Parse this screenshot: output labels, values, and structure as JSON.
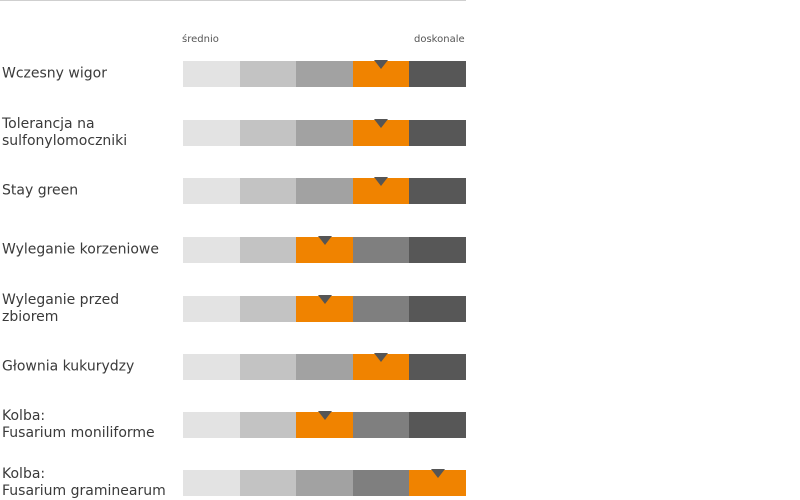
{
  "chart_data": {
    "type": "rating-scale",
    "scale": {
      "low_label": "średnio",
      "high_label": "doskonale",
      "levels": 5,
      "segment_colors": [
        "#e3e3e3",
        "#c3c3c3",
        "#a2a2a2",
        "#7f7f7f",
        "#575757"
      ],
      "highlight_color": "#f08300",
      "marker_color": "#555555"
    },
    "traits": [
      {
        "label": "Wczesny wigor",
        "rating": 4
      },
      {
        "label": "Tolerancja na\nsulfonylomoczniki",
        "rating": 4
      },
      {
        "label": "Stay green",
        "rating": 4
      },
      {
        "label": "Wyleganie korzeniowe",
        "rating": 3
      },
      {
        "label": "Wyleganie przed\nzbiorem",
        "rating": 3
      },
      {
        "label": "Głownia kukurydzy",
        "rating": 4
      },
      {
        "label": "Kolba:\nFusarium moniliforme",
        "rating": 3
      },
      {
        "label": "Kolba:\nFusarium graminearum",
        "rating": 5
      }
    ]
  }
}
